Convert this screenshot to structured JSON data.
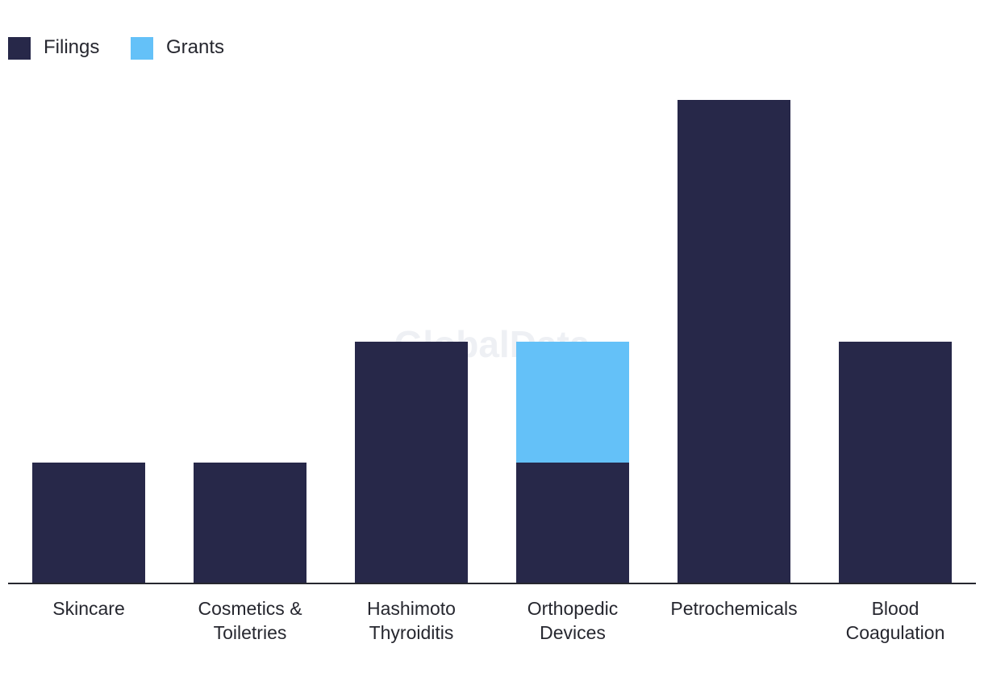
{
  "watermark": "GlobalData",
  "chart_data": {
    "type": "bar",
    "stacked": true,
    "categories": [
      [
        "Skincare"
      ],
      [
        "Cosmetics &",
        "Toiletries"
      ],
      [
        "Hashimoto",
        "Thyroiditis"
      ],
      [
        "Orthopedic",
        "Devices"
      ],
      [
        "Petrochemicals"
      ],
      [
        "Blood",
        "Coagulation"
      ]
    ],
    "series": [
      {
        "name": "Filings",
        "color": "#272849",
        "values": [
          1,
          1,
          2,
          1,
          4,
          2
        ]
      },
      {
        "name": "Grants",
        "color": "#64c1f8",
        "values": [
          0,
          0,
          0,
          1,
          0,
          0
        ]
      }
    ],
    "ylim": [
      0,
      4
    ],
    "legend_position": "top-left",
    "grid": false
  }
}
